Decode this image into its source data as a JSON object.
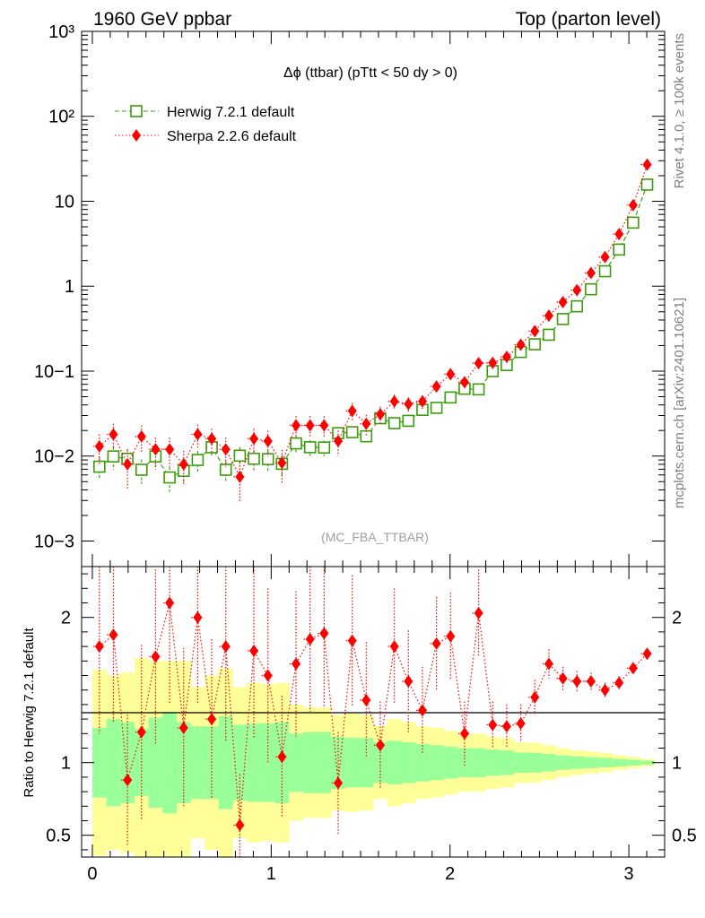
{
  "header": {
    "left": "1960 GeV ppbar",
    "right": "Top (parton level)"
  },
  "side_labels": {
    "rivet": "Rivet 4.1.0, ≥ 100k events",
    "mcplots": "mcplots.cern.ch [arXiv:2401.10621]"
  },
  "chart_data": {
    "type": "line",
    "title": "Δϕ (ttbar) (pTtt < 50 dy > 0)",
    "watermark": "(MC_FBA_TTBAR)",
    "xlabel": "",
    "ylabel": "",
    "x": [
      0.0393,
      0.1178,
      0.1963,
      0.2749,
      0.3534,
      0.432,
      0.5105,
      0.589,
      0.6676,
      0.7461,
      0.8247,
      0.9032,
      0.9817,
      1.0603,
      1.1388,
      1.2174,
      1.2959,
      1.3744,
      1.453,
      1.5315,
      1.6101,
      1.6886,
      1.7671,
      1.8457,
      1.9242,
      2.0028,
      2.0813,
      2.1598,
      2.2384,
      2.3169,
      2.3955,
      2.474,
      2.5525,
      2.6311,
      2.7096,
      2.7882,
      2.8667,
      2.9452,
      3.0238,
      3.1023
    ],
    "xlim": [
      -0.06,
      3.2
    ],
    "ylim": [
      0.0005,
      1000
    ],
    "yscale": "log",
    "x_ticks": [
      "0",
      "1",
      "2",
      "3"
    ],
    "y_ticks": [
      "10−3",
      "10−2",
      "10−1",
      "1",
      "10",
      "10²",
      "10³"
    ],
    "legend": "top-left",
    "series": [
      {
        "name": "Herwig 7.2.1 default",
        "color": "#3c9c0c",
        "marker": "open-square",
        "linestyle": "dashed",
        "values": [
          0.0075,
          0.0099,
          0.0093,
          0.0069,
          0.0099,
          0.0056,
          0.0067,
          0.009,
          0.0127,
          0.0069,
          0.0101,
          0.0093,
          0.0092,
          0.0081,
          0.0141,
          0.0127,
          0.0126,
          0.0186,
          0.0191,
          0.0171,
          0.0279,
          0.0244,
          0.026,
          0.035,
          0.037,
          0.049,
          0.062,
          0.061,
          0.1,
          0.118,
          0.168,
          0.207,
          0.268,
          0.41,
          0.58,
          0.92,
          1.5,
          2.7,
          5.6,
          15.7
        ],
        "err_low": [
          0.0022,
          0.003,
          0.0028,
          0.0022,
          0.003,
          0.0018,
          0.002,
          0.0025,
          0.003,
          0.002,
          0.0026,
          0.0025,
          0.0025,
          0.0022,
          0.003,
          0.0027,
          0.0026,
          0.0033,
          0.0032,
          0.003,
          0.004,
          0.0035,
          0.0036,
          0.0045,
          0.0045,
          0.0055,
          0.0065,
          0.006,
          0.009,
          0.01,
          0.012,
          0.014,
          0.016,
          0.02,
          0.025,
          0.035,
          0.05,
          0.07,
          0.11,
          0.2
        ],
        "err_high": [
          0.0022,
          0.003,
          0.0028,
          0.0022,
          0.003,
          0.0018,
          0.002,
          0.0025,
          0.003,
          0.002,
          0.0026,
          0.0025,
          0.0025,
          0.0022,
          0.003,
          0.0027,
          0.0026,
          0.0033,
          0.0032,
          0.003,
          0.004,
          0.0035,
          0.0036,
          0.0045,
          0.0045,
          0.0055,
          0.0065,
          0.006,
          0.009,
          0.01,
          0.012,
          0.014,
          0.016,
          0.02,
          0.025,
          0.035,
          0.05,
          0.07,
          0.11,
          0.2
        ]
      },
      {
        "name": "Sherpa 2.2.6 default",
        "color": "#ff0000",
        "marker": "filled-diamond",
        "linestyle": "dotted",
        "values": [
          0.013,
          0.018,
          0.008,
          0.017,
          0.012,
          0.012,
          0.008,
          0.018,
          0.016,
          0.012,
          0.0057,
          0.016,
          0.015,
          0.0083,
          0.023,
          0.023,
          0.023,
          0.015,
          0.034,
          0.024,
          0.031,
          0.044,
          0.041,
          0.044,
          0.066,
          0.092,
          0.074,
          0.124,
          0.125,
          0.147,
          0.205,
          0.296,
          0.45,
          0.65,
          0.9,
          1.43,
          2.2,
          4.1,
          9.0,
          27.0
        ],
        "err_low": [
          0.005,
          0.006,
          0.004,
          0.006,
          0.0045,
          0.0045,
          0.0035,
          0.0055,
          0.005,
          0.0045,
          0.0028,
          0.005,
          0.005,
          0.0035,
          0.0065,
          0.0065,
          0.0065,
          0.005,
          0.008,
          0.0065,
          0.007,
          0.009,
          0.008,
          0.008,
          0.01,
          0.012,
          0.01,
          0.014,
          0.014,
          0.015,
          0.018,
          0.022,
          0.028,
          0.035,
          0.045,
          0.06,
          0.08,
          0.12,
          0.2,
          0.45
        ],
        "err_high": [
          0.005,
          0.006,
          0.004,
          0.006,
          0.0045,
          0.0045,
          0.0035,
          0.0055,
          0.005,
          0.0045,
          0.0028,
          0.005,
          0.005,
          0.0035,
          0.0065,
          0.0065,
          0.0065,
          0.005,
          0.008,
          0.0065,
          0.007,
          0.009,
          0.008,
          0.008,
          0.01,
          0.012,
          0.01,
          0.014,
          0.014,
          0.015,
          0.018,
          0.022,
          0.028,
          0.035,
          0.045,
          0.06,
          0.08,
          0.12,
          0.2,
          0.45
        ]
      }
    ],
    "ratio": {
      "ylabel": "Ratio to Herwig 7.2.1 default",
      "ylim": [
        0.35,
        2.35
      ],
      "y_ticks": [
        "0.5",
        "1",
        "2"
      ],
      "reference_line": 1,
      "band_inner_color": "#99ff99",
      "band_outer_color": "#ffff99",
      "band_inner_half": [
        0.24,
        0.3,
        0.28,
        0.23,
        0.31,
        0.35,
        0.28,
        0.25,
        0.25,
        0.32,
        0.26,
        0.27,
        0.27,
        0.28,
        0.2,
        0.21,
        0.21,
        0.18,
        0.17,
        0.17,
        0.14,
        0.15,
        0.14,
        0.13,
        0.12,
        0.11,
        0.1,
        0.1,
        0.09,
        0.085,
        0.07,
        0.068,
        0.06,
        0.05,
        0.043,
        0.038,
        0.033,
        0.026,
        0.02,
        0.013
      ],
      "band_outer_half": [
        0.64,
        0.6,
        0.62,
        0.72,
        0.7,
        0.7,
        0.7,
        0.52,
        0.6,
        0.65,
        0.52,
        0.55,
        0.54,
        0.55,
        0.4,
        0.38,
        0.38,
        0.33,
        0.34,
        0.33,
        0.25,
        0.3,
        0.28,
        0.25,
        0.24,
        0.22,
        0.2,
        0.2,
        0.18,
        0.17,
        0.14,
        0.136,
        0.12,
        0.1,
        0.086,
        0.076,
        0.066,
        0.052,
        0.04,
        0.026
      ],
      "series": [
        {
          "name": "Sherpa 2.2.6 default",
          "values": [
            1.8,
            1.88,
            0.88,
            1.21,
            1.73,
            2.1,
            1.24,
            2.0,
            1.3,
            1.8,
            0.57,
            1.77,
            1.6,
            1.04,
            1.68,
            1.85,
            1.89,
            0.86,
            1.84,
            1.43,
            1.12,
            1.8,
            1.56,
            1.36,
            1.82,
            1.87,
            1.2,
            2.03,
            1.26,
            1.25,
            1.27,
            1.45,
            1.68,
            1.58,
            1.56,
            1.56,
            1.5,
            1.55,
            1.65,
            1.75
          ],
          "err_low": [
            0.6,
            0.6,
            0.45,
            0.6,
            0.6,
            0.7,
            0.55,
            0.6,
            0.55,
            0.65,
            0.35,
            0.6,
            0.6,
            0.42,
            0.5,
            0.5,
            0.5,
            0.35,
            0.45,
            0.4,
            0.3,
            0.4,
            0.35,
            0.3,
            0.32,
            0.3,
            0.22,
            0.3,
            0.16,
            0.15,
            0.13,
            0.12,
            0.1,
            0.08,
            0.07,
            0.06,
            0.05,
            0.045,
            0.04,
            0.035
          ],
          "err_high": [
            0.6,
            0.6,
            0.45,
            0.6,
            0.6,
            0.7,
            0.55,
            0.6,
            0.55,
            0.65,
            0.35,
            0.6,
            0.6,
            0.42,
            0.5,
            0.5,
            0.5,
            0.35,
            0.45,
            0.4,
            0.3,
            0.4,
            0.35,
            0.3,
            0.32,
            0.3,
            0.22,
            0.3,
            0.16,
            0.15,
            0.13,
            0.12,
            0.1,
            0.08,
            0.07,
            0.06,
            0.05,
            0.045,
            0.04,
            0.035
          ]
        }
      ]
    }
  }
}
